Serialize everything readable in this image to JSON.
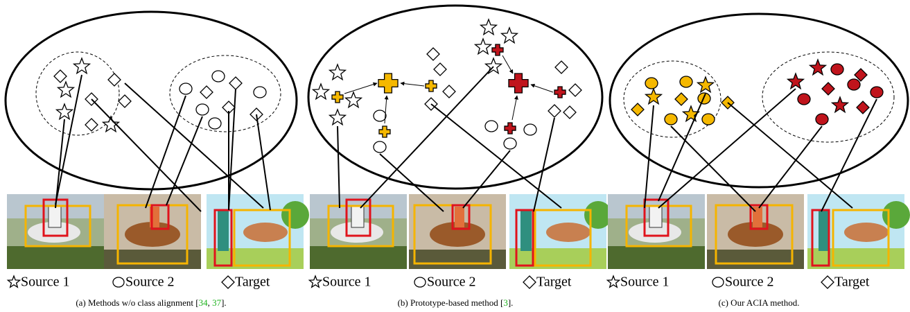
{
  "panels": [
    {
      "legend": [
        "Source 1",
        "Source 2",
        "Target"
      ],
      "caption": [
        {
          "text": "(a) Methods w/o class alignment ["
        },
        {
          "text": "34",
          "cite": true
        },
        {
          "text": ", "
        },
        {
          "text": "37",
          "cite": true
        },
        {
          "text": "]."
        }
      ]
    },
    {
      "legend": [
        "Source 1",
        "Source 2",
        "Target"
      ],
      "caption": [
        {
          "text": "(b) Prototype-based method ["
        },
        {
          "text": "3",
          "cite": true
        },
        {
          "text": "]."
        }
      ]
    },
    {
      "legend": [
        "Source 1",
        "Source 2",
        "Target"
      ],
      "caption": [
        {
          "text": "(c) Our ACIA method."
        }
      ]
    }
  ]
}
